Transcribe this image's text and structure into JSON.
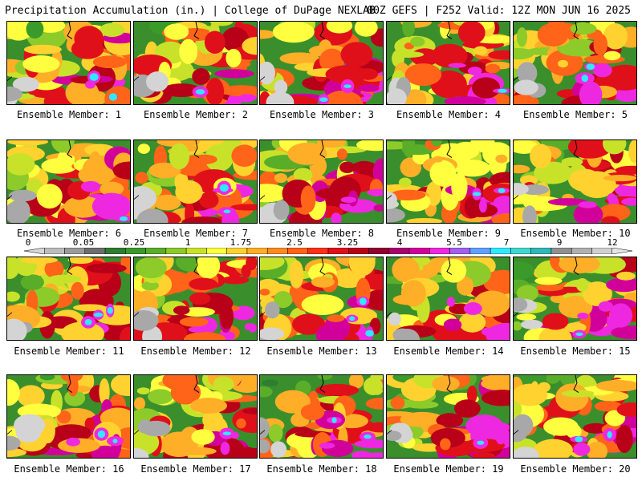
{
  "header": {
    "left_title": "Precipitation Accumulation (in.) | College of DuPage NEXLAB",
    "right_title": "00Z GEFS | F252 Valid: 12Z MON JUN 16 2025"
  },
  "colorbar": {
    "labels": [
      "0",
      "0.05",
      "0.25",
      "1",
      "1.75",
      "2.5",
      "3.25",
      "4",
      "5.5",
      "7",
      "9",
      "12"
    ],
    "colors": [
      "#d8d8d8",
      "#bcbcbc",
      "#9a9a9a",
      "#6e6e6e",
      "#2e7d32",
      "#3a9a2a",
      "#5aad28",
      "#8ccb2a",
      "#c8e22a",
      "#ffff40",
      "#ffd230",
      "#ffae28",
      "#ff8a20",
      "#ff6418",
      "#ff3018",
      "#e0101a",
      "#b80018",
      "#900030",
      "#aa0070",
      "#d2009a",
      "#ee28e0",
      "#a060f0",
      "#60a0ff",
      "#30e8ff",
      "#40d8d0",
      "#30b8b8",
      "#909090",
      "#b0b0b0",
      "#d0d0d0",
      "#e6e6e6"
    ]
  },
  "members": [
    {
      "label": "Ensemble Member: 1"
    },
    {
      "label": "Ensemble Member: 2"
    },
    {
      "label": "Ensemble Member: 3"
    },
    {
      "label": "Ensemble Member: 4"
    },
    {
      "label": "Ensemble Member: 5"
    },
    {
      "label": "Ensemble Member: 6"
    },
    {
      "label": "Ensemble Member: 7"
    },
    {
      "label": "Ensemble Member: 8"
    },
    {
      "label": "Ensemble Member: 9"
    },
    {
      "label": "Ensemble Member: 10"
    },
    {
      "label": "Ensemble Member: 11"
    },
    {
      "label": "Ensemble Member: 12"
    },
    {
      "label": "Ensemble Member: 13"
    },
    {
      "label": "Ensemble Member: 14"
    },
    {
      "label": "Ensemble Member: 15"
    },
    {
      "label": "Ensemble Member: 16"
    },
    {
      "label": "Ensemble Member: 17"
    },
    {
      "label": "Ensemble Member: 18"
    },
    {
      "label": "Ensemble Member: 19"
    },
    {
      "label": "Ensemble Member: 20"
    }
  ]
}
